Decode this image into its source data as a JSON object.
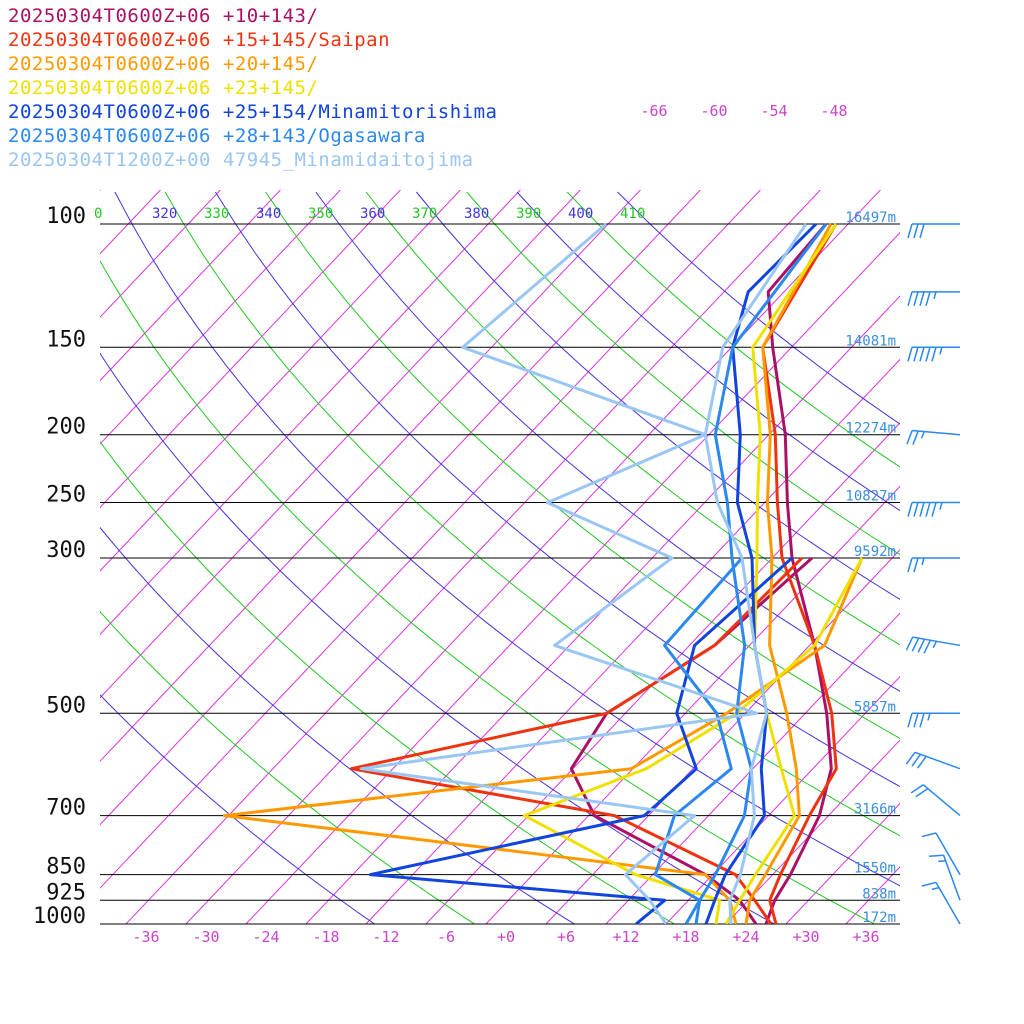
{
  "chart_data": {
    "type": "line",
    "title": "",
    "xlabel": "",
    "ylabel": "",
    "chart_kind": "skew-T log-p sounding",
    "y_scale": "log",
    "ylim": [
      1000,
      100
    ],
    "xlim": [
      -40,
      40
    ],
    "pressure_ticks": [
      "100",
      "150",
      "200",
      "250",
      "300",
      "500",
      "700",
      "850",
      "925",
      "1000"
    ],
    "temperature_ticks": [
      "-36",
      "-30",
      "-24",
      "-18",
      "-12",
      "-6",
      "+0",
      "+6",
      "+12",
      "+18",
      "+24",
      "+30",
      "+36"
    ],
    "upper_temperature_ticks": [
      "-66",
      "-60",
      "-54",
      "-48"
    ],
    "theta_ticks": [
      {
        "label": "0",
        "color": "#22c822"
      },
      {
        "label": "320",
        "color": "#4433dd"
      },
      {
        "label": "330",
        "color": "#22c822"
      },
      {
        "label": "340",
        "color": "#4433dd"
      },
      {
        "label": "350",
        "color": "#22c822"
      },
      {
        "label": "360",
        "color": "#4433dd"
      },
      {
        "label": "370",
        "color": "#22c822"
      },
      {
        "label": "380",
        "color": "#4433dd"
      },
      {
        "label": "390",
        "color": "#22c822"
      },
      {
        "label": "400",
        "color": "#4433dd"
      },
      {
        "label": "410",
        "color": "#22c822"
      }
    ],
    "height_labels": [
      {
        "p": 100,
        "label": "16497m"
      },
      {
        "p": 150,
        "label": "14081m"
      },
      {
        "p": 200,
        "label": "12274m"
      },
      {
        "p": 250,
        "label": "10827m"
      },
      {
        "p": 300,
        "label": "9592m"
      },
      {
        "p": 500,
        "label": "5857m"
      },
      {
        "p": 700,
        "label": "3166m"
      },
      {
        "p": 850,
        "label": "1550m"
      },
      {
        "p": 925,
        "label": "838m"
      },
      {
        "p": 1000,
        "label": "172m"
      }
    ],
    "grid": true,
    "legend_position": "top-left",
    "series": [
      {
        "name": "20250304T0600Z+06 +10+143/",
        "color": "#aa1166",
        "temperature": [
          [
            1000,
            26
          ],
          [
            925,
            24.5
          ],
          [
            850,
            23.5
          ],
          [
            700,
            20.5
          ],
          [
            600,
            17
          ],
          [
            500,
            11
          ],
          [
            400,
            3
          ],
          [
            300,
            -8
          ],
          [
            250,
            -14
          ],
          [
            200,
            -21
          ],
          [
            150,
            -31
          ],
          [
            125,
            -37
          ],
          [
            100,
            -38
          ]
        ],
        "dewpoint": [
          [
            1000,
            25
          ],
          [
            925,
            21
          ],
          [
            850,
            15
          ],
          [
            700,
            -2
          ],
          [
            600,
            -9
          ],
          [
            500,
            -11
          ],
          [
            400,
            -7
          ],
          [
            300,
            -6
          ]
        ]
      },
      {
        "name": "20250304T0600Z+06 +15+145/Saipan",
        "color": "#ee3311",
        "temperature": [
          [
            1000,
            27
          ],
          [
            925,
            24
          ],
          [
            850,
            22.5
          ],
          [
            700,
            19.5
          ],
          [
            600,
            17.5
          ],
          [
            500,
            11.5
          ],
          [
            400,
            3
          ],
          [
            300,
            -9
          ],
          [
            250,
            -15
          ],
          [
            200,
            -22
          ],
          [
            150,
            -32
          ],
          [
            100,
            -37
          ]
        ],
        "dewpoint": [
          [
            1000,
            26.5
          ],
          [
            925,
            22.5
          ],
          [
            850,
            18
          ],
          [
            700,
            0
          ],
          [
            600,
            -31
          ],
          [
            500,
            -11
          ],
          [
            400,
            -7
          ],
          [
            300,
            -7
          ]
        ]
      },
      {
        "name": "20250304T0600Z+06 +20+145/",
        "color": "#ff9900",
        "temperature": [
          [
            1000,
            24
          ],
          [
            925,
            22
          ],
          [
            850,
            21
          ],
          [
            700,
            18.5
          ],
          [
            600,
            13.5
          ],
          [
            500,
            7
          ],
          [
            400,
            -1.5
          ],
          [
            300,
            -10
          ],
          [
            250,
            -16
          ],
          [
            200,
            -22.5
          ],
          [
            150,
            -32
          ],
          [
            100,
            -37.5
          ]
        ],
        "dewpoint": [
          [
            1000,
            23
          ],
          [
            925,
            20
          ],
          [
            850,
            15
          ],
          [
            700,
            -39
          ],
          [
            600,
            -3
          ],
          [
            500,
            1
          ],
          [
            400,
            4
          ],
          [
            300,
            -1
          ]
        ]
      },
      {
        "name": "20250304T0600Z+06 +23+145/",
        "color": "#f0e000",
        "temperature": [
          [
            1000,
            22
          ],
          [
            925,
            21
          ],
          [
            850,
            20
          ],
          [
            700,
            18
          ],
          [
            600,
            12
          ],
          [
            500,
            5
          ],
          [
            400,
            -3
          ],
          [
            300,
            -11.5
          ],
          [
            250,
            -17
          ],
          [
            200,
            -23.5
          ],
          [
            150,
            -33
          ],
          [
            100,
            -37
          ]
        ],
        "dewpoint": [
          [
            1000,
            21
          ],
          [
            925,
            19
          ],
          [
            850,
            8
          ],
          [
            700,
            -9
          ],
          [
            600,
            -1.5
          ],
          [
            500,
            2
          ],
          [
            400,
            3
          ],
          [
            300,
            -1
          ]
        ]
      },
      {
        "name": "20250304T0600Z+06 +25+154/Minamitorishima",
        "color": "#1144dd",
        "temperature": [
          [
            1000,
            20
          ],
          [
            925,
            18.5
          ],
          [
            850,
            17
          ],
          [
            700,
            15
          ],
          [
            600,
            10
          ],
          [
            500,
            5
          ],
          [
            400,
            -3
          ],
          [
            300,
            -12
          ],
          [
            250,
            -19
          ],
          [
            200,
            -25.5
          ],
          [
            150,
            -35
          ],
          [
            125,
            -39
          ],
          [
            100,
            -39
          ]
        ],
        "dewpoint": [
          [
            1000,
            13
          ],
          [
            925,
            13.5
          ],
          [
            850,
            -18.5
          ],
          [
            700,
            3
          ],
          [
            600,
            3.5
          ],
          [
            500,
            -4
          ],
          [
            400,
            -9
          ],
          [
            300,
            -8
          ]
        ]
      },
      {
        "name": "20250304T0600Z+06 +28+143/Ogasawara",
        "color": "#2a88ee",
        "temperature": [
          [
            1000,
            19
          ],
          [
            925,
            17
          ],
          [
            850,
            16
          ],
          [
            700,
            13
          ],
          [
            600,
            9
          ],
          [
            500,
            2
          ],
          [
            400,
            -4
          ],
          [
            300,
            -14
          ],
          [
            250,
            -20
          ],
          [
            200,
            -28
          ],
          [
            150,
            -35
          ],
          [
            100,
            -38
          ]
        ],
        "dewpoint": [
          [
            1000,
            18
          ],
          [
            925,
            17
          ],
          [
            850,
            10
          ],
          [
            700,
            6
          ],
          [
            600,
            7
          ],
          [
            500,
            0
          ],
          [
            400,
            -12
          ],
          [
            300,
            -13
          ]
        ]
      },
      {
        "name": "20250304T1200Z+00 47945_Minamidaitojima",
        "color": "#99c6f2",
        "temperature": [
          [
            1000,
            22.5
          ],
          [
            925,
            20
          ],
          [
            850,
            18.5
          ],
          [
            700,
            14
          ],
          [
            600,
            9
          ],
          [
            500,
            5
          ],
          [
            400,
            -3
          ],
          [
            300,
            -13
          ],
          [
            250,
            -21
          ],
          [
            200,
            -29
          ],
          [
            150,
            -36
          ],
          [
            100,
            -40
          ]
        ],
        "dewpoint": [
          [
            1000,
            16
          ],
          [
            925,
            12
          ],
          [
            850,
            7
          ],
          [
            700,
            8
          ],
          [
            600,
            -30
          ],
          [
            500,
            4
          ],
          [
            400,
            -23
          ],
          [
            300,
            -20
          ],
          [
            250,
            -38
          ],
          [
            200,
            -29
          ],
          [
            150,
            -62
          ],
          [
            100,
            -60
          ]
        ]
      }
    ],
    "wind_barbs": [
      {
        "p": 100,
        "speed_kt": 30,
        "dir": 270
      },
      {
        "p": 125,
        "speed_kt": 45,
        "dir": 270
      },
      {
        "p": 150,
        "speed_kt": 55,
        "dir": 270
      },
      {
        "p": 200,
        "speed_kt": 25,
        "dir": 265
      },
      {
        "p": 250,
        "speed_kt": 55,
        "dir": 270
      },
      {
        "p": 300,
        "speed_kt": 25,
        "dir": 270
      },
      {
        "p": 400,
        "speed_kt": 45,
        "dir": 260
      },
      {
        "p": 500,
        "speed_kt": 35,
        "dir": 270
      },
      {
        "p": 600,
        "speed_kt": 30,
        "dir": 250
      },
      {
        "p": 700,
        "speed_kt": 20,
        "dir": 230
      },
      {
        "p": 850,
        "speed_kt": 10,
        "dir": 210
      },
      {
        "p": 925,
        "speed_kt": 15,
        "dir": 200
      },
      {
        "p": 1000,
        "speed_kt": 15,
        "dir": 210
      }
    ]
  }
}
